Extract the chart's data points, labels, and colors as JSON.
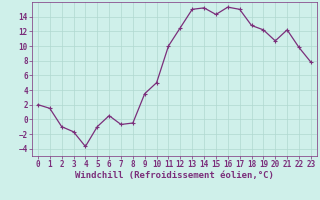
{
  "x_values": [
    0,
    1,
    2,
    3,
    4,
    5,
    6,
    7,
    8,
    9,
    10,
    11,
    12,
    13,
    14,
    15,
    16,
    17,
    18,
    19,
    20,
    21,
    22,
    23
  ],
  "y_values": [
    2,
    1.5,
    -1,
    -1.7,
    -3.7,
    -1,
    0.5,
    -0.7,
    -0.5,
    3.5,
    5,
    10,
    12.5,
    15,
    15.2,
    14.3,
    15.3,
    15,
    12.8,
    12.2,
    10.7,
    12.2,
    9.8,
    7.8
  ],
  "line_color": "#7b2f7b",
  "marker": "+",
  "marker_color": "#7b2f7b",
  "background_color": "#cff0ea",
  "grid_color": "#b0d8d0",
  "tick_color": "#7b2f7b",
  "label_color": "#7b2f7b",
  "xlabel": "Windchill (Refroidissement éolien,°C)",
  "xlim": [
    -0.5,
    23.5
  ],
  "ylim": [
    -5,
    16
  ],
  "yticks": [
    -4,
    -2,
    0,
    2,
    4,
    6,
    8,
    10,
    12,
    14
  ],
  "xticks": [
    0,
    1,
    2,
    3,
    4,
    5,
    6,
    7,
    8,
    9,
    10,
    11,
    12,
    13,
    14,
    15,
    16,
    17,
    18,
    19,
    20,
    21,
    22,
    23
  ],
  "tick_labelsize": 5.5,
  "xlabel_fontsize": 6.5,
  "linewidth": 0.9,
  "markersize": 2.5
}
